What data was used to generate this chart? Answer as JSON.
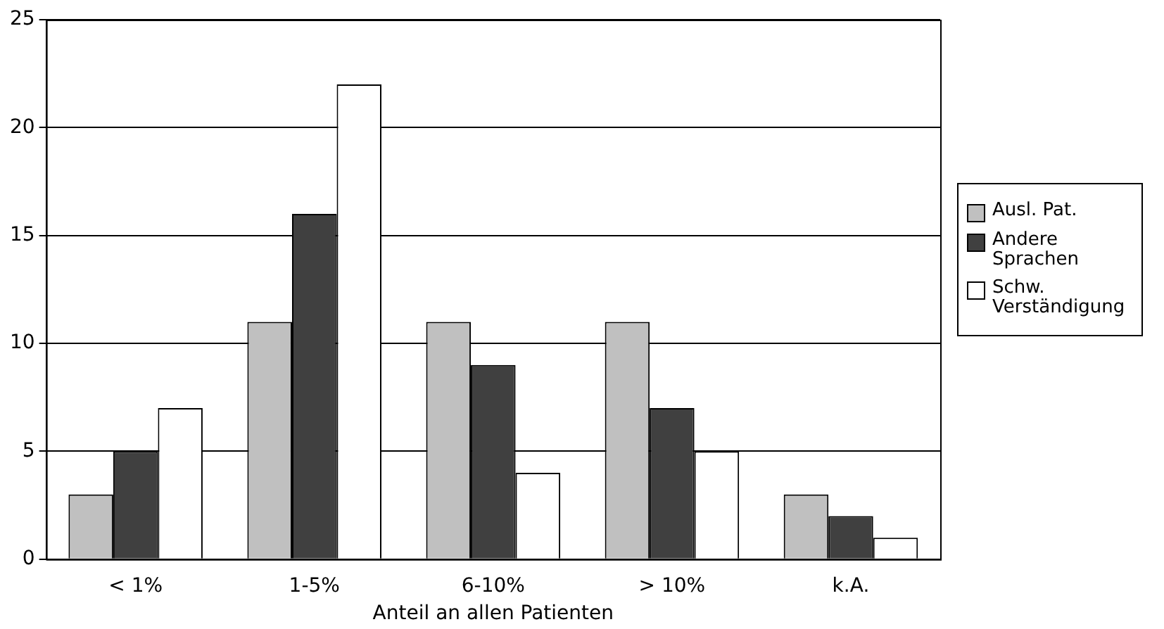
{
  "chart_data": {
    "type": "bar",
    "xlabel": "Anteil an allen Patienten",
    "categories": [
      "< 1%",
      "1-5%",
      "6-10%",
      "> 10%",
      "k.A."
    ],
    "series": [
      {
        "name": "Ausl. Pat.",
        "color": "#c0c0c0",
        "values": [
          3,
          11,
          11,
          11,
          3
        ]
      },
      {
        "name": "Andere Sprachen",
        "color": "#404040",
        "values": [
          5,
          16,
          9,
          7,
          2
        ]
      },
      {
        "name": "Schw. Verständigung",
        "color": "#ffffff",
        "values": [
          7,
          22,
          4,
          5,
          1
        ]
      }
    ],
    "ylim": [
      0,
      25
    ],
    "yticks": [
      0,
      5,
      10,
      15,
      20,
      25
    ],
    "grid": "y",
    "legend": "right"
  }
}
